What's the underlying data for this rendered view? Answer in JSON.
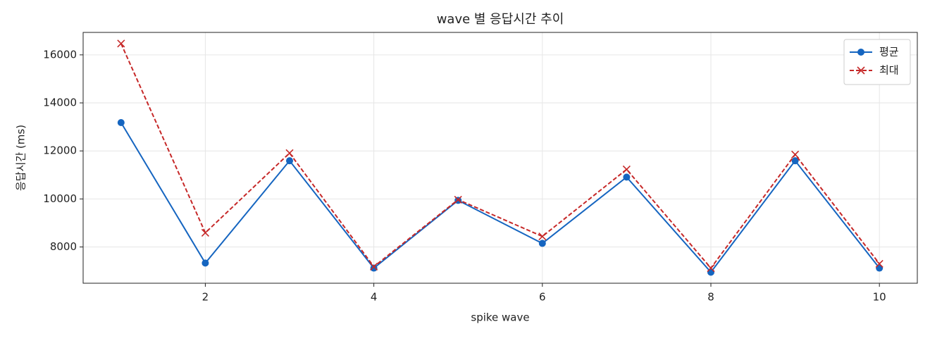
{
  "chart_data": {
    "type": "line",
    "title": "wave 별 응답시간 추이",
    "xlabel": "spike wave",
    "ylabel": "응답시간 (ms)",
    "x": [
      1,
      2,
      3,
      4,
      5,
      6,
      7,
      8,
      9,
      10
    ],
    "series": [
      {
        "name": "평균",
        "color": "#1565c0",
        "marker": "o",
        "linestyle": "solid",
        "values": [
          13180,
          7330,
          11590,
          7120,
          9940,
          8150,
          10910,
          6950,
          11590,
          7120
        ]
      },
      {
        "name": "최대",
        "color": "#c62828",
        "marker": "x",
        "linestyle": "dashed",
        "values": [
          16470,
          8590,
          11910,
          7180,
          9970,
          8440,
          11230,
          7120,
          11850,
          7300
        ]
      }
    ],
    "xlim": [
      0.55,
      10.45
    ],
    "xticks": [
      2,
      4,
      6,
      8,
      10
    ],
    "ylim": [
      6490,
      16935
    ],
    "yticks": [
      8000,
      10000,
      12000,
      14000,
      16000
    ],
    "grid": true,
    "legend": "upper right"
  }
}
